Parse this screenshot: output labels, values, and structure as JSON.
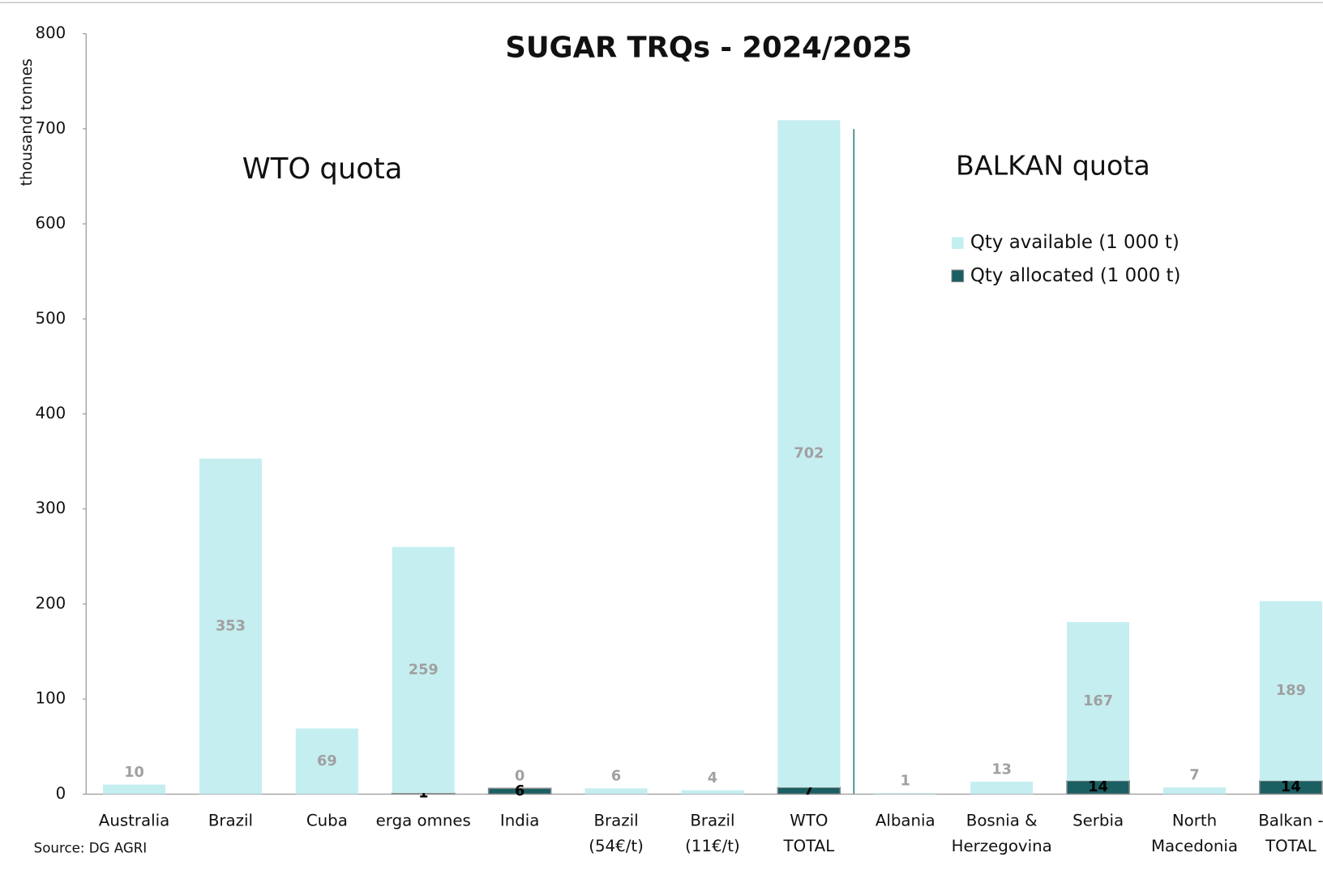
{
  "chart_data": {
    "type": "stacked_bar",
    "title": "SUGAR TRQs - 2024/2025",
    "y_label": "thousand tonnes",
    "annotations": [
      "WTO  quota",
      "BALKAN  quota"
    ],
    "source": "Source: DG AGRI",
    "categories": [
      [
        "Australia"
      ],
      [
        "Brazil"
      ],
      [
        "Cuba"
      ],
      [
        "erga omnes"
      ],
      [
        "India"
      ],
      [
        "Brazil",
        "(54€/t)"
      ],
      [
        "Brazil",
        "(11€/t)"
      ],
      [
        "WTO",
        "TOTAL"
      ],
      [
        "Albania"
      ],
      [
        "Bosnia &",
        "Herzegovina"
      ],
      [
        "Serbia"
      ],
      [
        "North",
        "Macedonia"
      ],
      [
        "Balkan -",
        "TOTAL"
      ]
    ],
    "series": [
      {
        "name": "Qty allocated (1 000 t)",
        "color": "#1a5f62",
        "values": [
          null,
          null,
          null,
          1,
          6,
          null,
          null,
          7,
          null,
          null,
          14,
          null,
          14
        ]
      },
      {
        "name": "Qty available (1 000 t)",
        "color": "#c5eef0",
        "values": [
          10,
          353,
          69,
          259,
          0,
          6,
          4,
          702,
          1,
          13,
          167,
          7,
          189
        ]
      }
    ],
    "ylim": [
      0,
      800
    ],
    "yticks": [
      0,
      100,
      200,
      300,
      400,
      500,
      600,
      700,
      800
    ]
  }
}
